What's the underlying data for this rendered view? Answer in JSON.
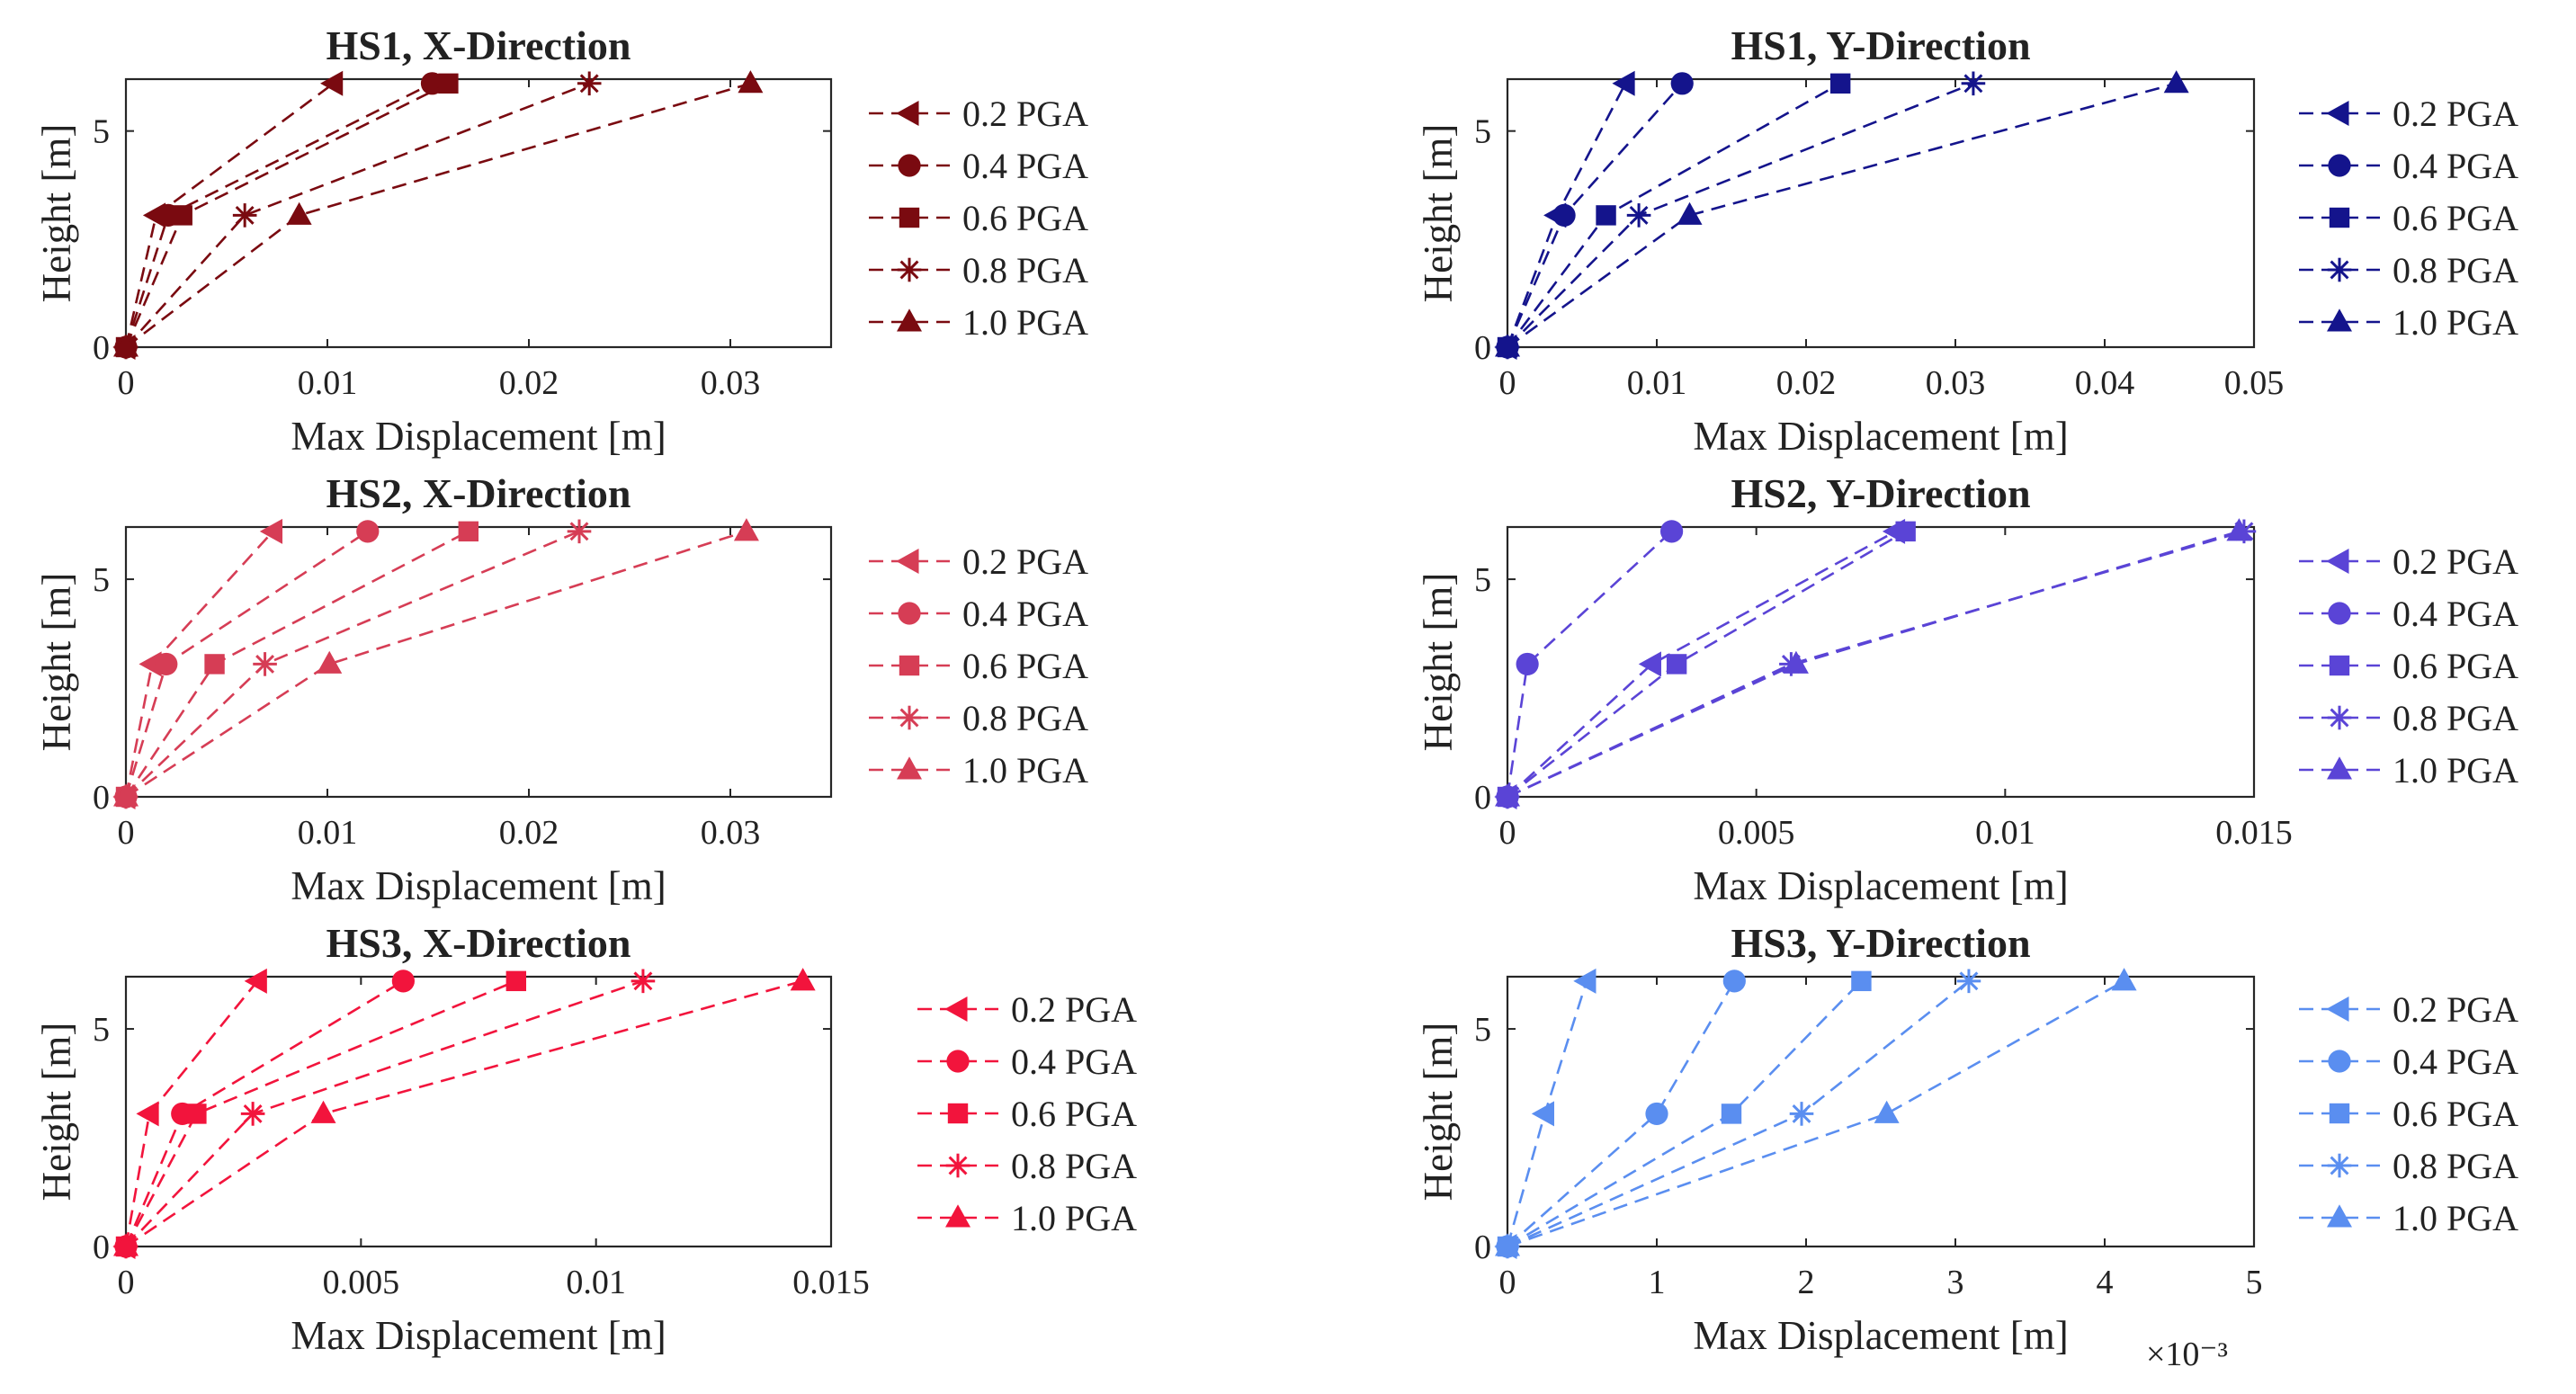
{
  "chart_data": [
    {
      "type": "line",
      "title": "HS1, X-Direction",
      "xlabel": "Max Displacement [m]",
      "ylabel": "Height [m]",
      "xlim": [
        0,
        0.035
      ],
      "ylim": [
        0,
        6.2
      ],
      "xticks": [
        0,
        0.01,
        0.02,
        0.03
      ],
      "xtick_labels": [
        "0",
        "0.01",
        "0.02",
        "0.03"
      ],
      "yticks": [
        0,
        5
      ],
      "ytick_labels": [
        "0",
        "5"
      ],
      "x_exponent": "",
      "color": "#7a0a10",
      "y": [
        0,
        3.05,
        6.1
      ],
      "series": [
        {
          "name": "0.2 PGA",
          "marker": "triangle-left",
          "x": [
            0,
            0.0015,
            0.0103
          ]
        },
        {
          "name": "0.4 PGA",
          "marker": "circle",
          "x": [
            0,
            0.0021,
            0.0152
          ]
        },
        {
          "name": "0.6 PGA",
          "marker": "square",
          "x": [
            0,
            0.0028,
            0.016
          ]
        },
        {
          "name": "0.8 PGA",
          "marker": "star",
          "x": [
            0,
            0.0059,
            0.023
          ]
        },
        {
          "name": "1.0 PGA",
          "marker": "triangle-up",
          "x": [
            0,
            0.0086,
            0.031
          ]
        }
      ]
    },
    {
      "type": "line",
      "title": "HS1, Y-Direction",
      "xlabel": "Max Displacement [m]",
      "ylabel": "Height [m]",
      "xlim": [
        0,
        0.05
      ],
      "ylim": [
        0,
        6.2
      ],
      "xticks": [
        0,
        0.01,
        0.02,
        0.03,
        0.04,
        0.05
      ],
      "xtick_labels": [
        "0",
        "0.01",
        "0.02",
        "0.03",
        "0.04",
        "0.05"
      ],
      "yticks": [
        0,
        5
      ],
      "ytick_labels": [
        "0",
        "5"
      ],
      "x_exponent": "",
      "color": "#14148c",
      "y": [
        0,
        3.05,
        6.1
      ],
      "series": [
        {
          "name": "0.2 PGA",
          "marker": "triangle-left",
          "x": [
            0,
            0.0033,
            0.0079
          ]
        },
        {
          "name": "0.4 PGA",
          "marker": "circle",
          "x": [
            0,
            0.0038,
            0.0117
          ]
        },
        {
          "name": "0.6 PGA",
          "marker": "square",
          "x": [
            0,
            0.0066,
            0.0223
          ]
        },
        {
          "name": "0.8 PGA",
          "marker": "star",
          "x": [
            0,
            0.0088,
            0.0312
          ]
        },
        {
          "name": "1.0 PGA",
          "marker": "triangle-up",
          "x": [
            0,
            0.0122,
            0.0448
          ]
        }
      ]
    },
    {
      "type": "line",
      "title": "HS2, X-Direction",
      "xlabel": "Max Displacement [m]",
      "ylabel": "Height [m]",
      "xlim": [
        0,
        0.035
      ],
      "ylim": [
        0,
        6.2
      ],
      "xticks": [
        0,
        0.01,
        0.02,
        0.03
      ],
      "xtick_labels": [
        "0",
        "0.01",
        "0.02",
        "0.03"
      ],
      "yticks": [
        0,
        5
      ],
      "ytick_labels": [
        "0",
        "5"
      ],
      "x_exponent": "",
      "color": "#d63d55",
      "y": [
        0,
        3.05,
        6.1
      ],
      "series": [
        {
          "name": "0.2 PGA",
          "marker": "triangle-left",
          "x": [
            0,
            0.0013,
            0.0073
          ]
        },
        {
          "name": "0.4 PGA",
          "marker": "circle",
          "x": [
            0,
            0.002,
            0.012
          ]
        },
        {
          "name": "0.6 PGA",
          "marker": "square",
          "x": [
            0,
            0.0044,
            0.017
          ]
        },
        {
          "name": "0.8 PGA",
          "marker": "star",
          "x": [
            0,
            0.0069,
            0.0225
          ]
        },
        {
          "name": "1.0 PGA",
          "marker": "triangle-up",
          "x": [
            0,
            0.0101,
            0.0308
          ]
        }
      ]
    },
    {
      "type": "line",
      "title": "HS2, Y-Direction",
      "xlabel": "Max Displacement [m]",
      "ylabel": "Height [m]",
      "xlim": [
        0,
        0.015
      ],
      "ylim": [
        0,
        6.2
      ],
      "xticks": [
        0,
        0.005,
        0.01,
        0.015
      ],
      "xtick_labels": [
        "0",
        "0.005",
        "0.01",
        "0.015"
      ],
      "yticks": [
        0,
        5
      ],
      "ytick_labels": [
        "0",
        "5"
      ],
      "x_exponent": "",
      "color": "#5a44d6",
      "y": [
        0,
        3.05,
        6.1
      ],
      "series": [
        {
          "name": "0.2 PGA",
          "marker": "triangle-left",
          "x": [
            0,
            0.0029,
            0.0078
          ]
        },
        {
          "name": "0.4 PGA",
          "marker": "circle",
          "x": [
            0,
            0.0004,
            0.0033
          ]
        },
        {
          "name": "0.6 PGA",
          "marker": "square",
          "x": [
            0,
            0.0034,
            0.008
          ]
        },
        {
          "name": "0.8 PGA",
          "marker": "star",
          "x": [
            0,
            0.0057,
            0.0148
          ]
        },
        {
          "name": "1.0 PGA",
          "marker": "triangle-up",
          "x": [
            0,
            0.0058,
            0.0147
          ]
        }
      ]
    },
    {
      "type": "line",
      "title": "HS3, X-Direction",
      "xlabel": "Max Displacement [m]",
      "ylabel": "Height [m]",
      "xlim": [
        0,
        0.015
      ],
      "ylim": [
        0,
        6.2
      ],
      "xticks": [
        0,
        0.005,
        0.01,
        0.015
      ],
      "xtick_labels": [
        "0",
        "0.005",
        "0.01",
        "0.015"
      ],
      "yticks": [
        0,
        5
      ],
      "ytick_labels": [
        "0",
        "5"
      ],
      "x_exponent": "",
      "color": "#f2143c",
      "y": [
        0,
        3.05,
        6.1
      ],
      "series": [
        {
          "name": "0.2 PGA",
          "marker": "triangle-left",
          "x": [
            0,
            0.0005,
            0.0028
          ]
        },
        {
          "name": "0.4 PGA",
          "marker": "circle",
          "x": [
            0,
            0.0012,
            0.0059
          ]
        },
        {
          "name": "0.6 PGA",
          "marker": "square",
          "x": [
            0,
            0.0015,
            0.0083
          ]
        },
        {
          "name": "0.8 PGA",
          "marker": "star",
          "x": [
            0,
            0.0027,
            0.011
          ]
        },
        {
          "name": "1.0 PGA",
          "marker": "triangle-up",
          "x": [
            0,
            0.0042,
            0.0144
          ]
        }
      ]
    },
    {
      "type": "line",
      "title": "HS3, Y-Direction",
      "xlabel": "Max Displacement [m]",
      "ylabel": "Height [m]",
      "xlim": [
        0,
        0.005
      ],
      "ylim": [
        0,
        6.2
      ],
      "xticks": [
        0,
        0.001,
        0.002,
        0.003,
        0.004,
        0.005
      ],
      "xtick_labels": [
        "0",
        "1",
        "2",
        "3",
        "4",
        "5"
      ],
      "yticks": [
        0,
        5
      ],
      "ytick_labels": [
        "0",
        "5"
      ],
      "x_exponent": "×10⁻³",
      "color": "#5a8ef0",
      "y": [
        0,
        3.05,
        6.1
      ],
      "series": [
        {
          "name": "0.2 PGA",
          "marker": "triangle-left",
          "x": [
            0,
            0.00025,
            0.00053
          ]
        },
        {
          "name": "0.4 PGA",
          "marker": "circle",
          "x": [
            0,
            0.001,
            0.00152
          ]
        },
        {
          "name": "0.6 PGA",
          "marker": "square",
          "x": [
            0,
            0.0015,
            0.00237
          ]
        },
        {
          "name": "0.8 PGA",
          "marker": "star",
          "x": [
            0,
            0.00197,
            0.00309
          ]
        },
        {
          "name": "1.0 PGA",
          "marker": "triangle-up",
          "x": [
            0,
            0.00254,
            0.00413
          ]
        }
      ]
    }
  ]
}
